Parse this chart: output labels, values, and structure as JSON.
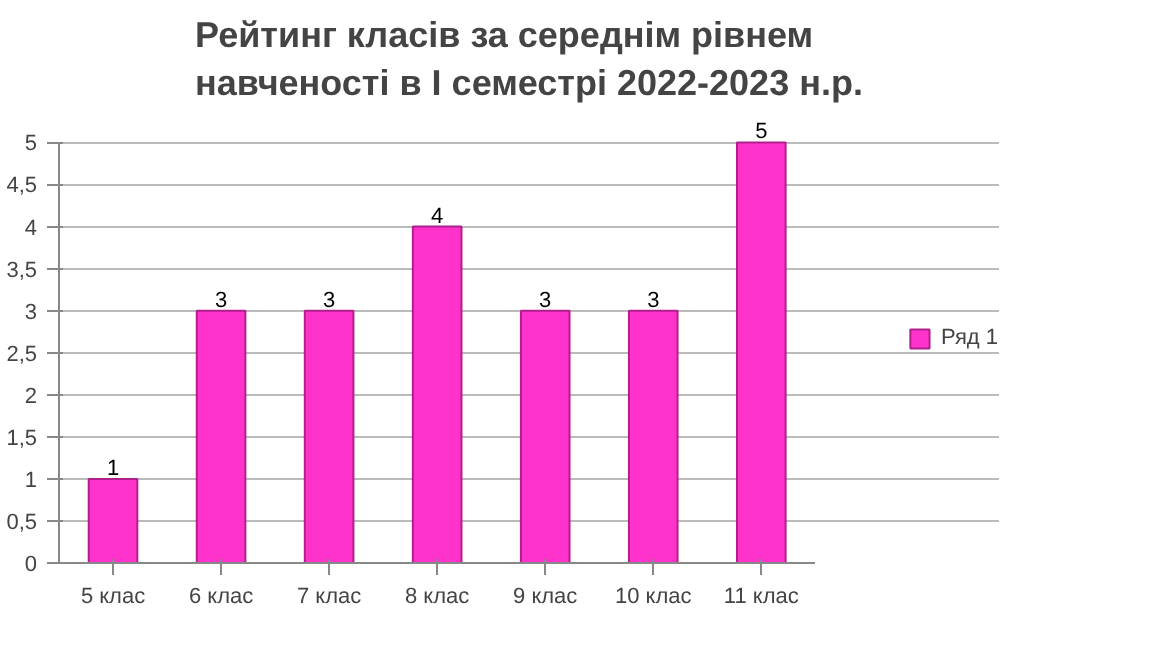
{
  "chart_data": {
    "type": "bar",
    "title": "Рейтинг класів за середнім рівнем навченості в І семестрі 2022-2023 н.р.",
    "categories": [
      "5 клас",
      "6 клас",
      "7 клас",
      "8 клас",
      "9 клас",
      "10 клас",
      "11 клас"
    ],
    "series": [
      {
        "name": "Ряд 1",
        "color": "#ff33cc",
        "values": [
          1,
          3,
          3,
          4,
          3,
          3,
          5
        ]
      }
    ],
    "ylim": [
      0,
      5
    ],
    "yticks": [
      0,
      {
        "value": 0.5,
        "label": "0,5"
      },
      1,
      {
        "value": 1.5,
        "label": "1,5"
      },
      2,
      {
        "value": 2.5,
        "label": "2,5"
      },
      3,
      {
        "value": 3.5,
        "label": "3,5"
      },
      4,
      {
        "value": 4.5,
        "label": "4,5"
      },
      5
    ],
    "grid": "y",
    "legend": "right",
    "data_labels": true
  }
}
